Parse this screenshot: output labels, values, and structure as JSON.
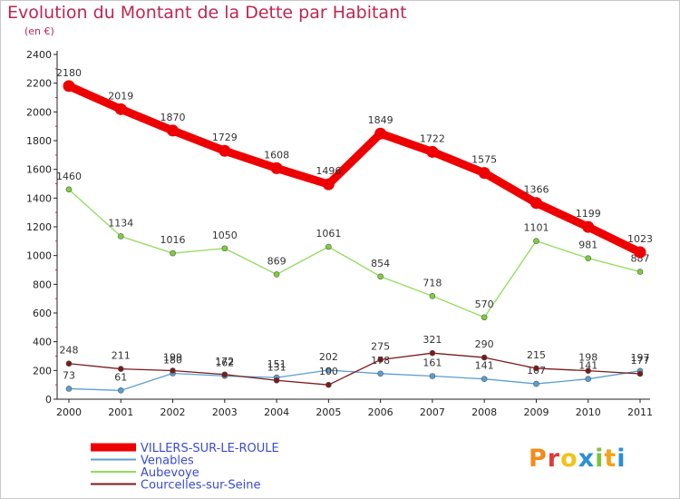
{
  "header": {
    "title": "Evolution du Montant de la Dette par Habitant",
    "subtitle": "(en €)"
  },
  "brand": {
    "letters": [
      "P",
      "r",
      "o",
      "x",
      "i",
      "t",
      "i"
    ],
    "colors": [
      "#f28c1a",
      "#e03a3a",
      "#f2c21a",
      "#2b8fd6",
      "#7cc242",
      "#f2a31a",
      "#2b8fd6"
    ]
  },
  "chart_data": {
    "type": "line",
    "x": [
      "2000",
      "2001",
      "2002",
      "2003",
      "2004",
      "2005",
      "2006",
      "2007",
      "2008",
      "2009",
      "2010",
      "2011"
    ],
    "ylim": [
      0,
      2400
    ],
    "yticks": [
      0,
      200,
      400,
      600,
      800,
      1000,
      1200,
      1400,
      1600,
      1800,
      2000,
      2200,
      2400
    ],
    "grid": false,
    "legend_position": "bottom-left",
    "series": [
      {
        "name": "VILLERS-SUR-LE-ROULE",
        "color": "#ee0000",
        "legend_color": "#3a4bd6",
        "width": 9,
        "values": [
          2180,
          2019,
          1870,
          1729,
          1608,
          1496,
          1849,
          1722,
          1575,
          1366,
          1199,
          1023
        ]
      },
      {
        "name": "Venables",
        "color": "#5a9fd4",
        "legend_color": "#3a4bd6",
        "width": 1.3,
        "values": [
          73,
          61,
          180,
          162,
          151,
          202,
          178,
          161,
          141,
          107,
          141,
          197
        ]
      },
      {
        "name": "Aubevoye",
        "color": "#90dc5a",
        "legend_color": "#3a4bd6",
        "width": 1.3,
        "values": [
          1460,
          1134,
          1016,
          1050,
          869,
          1061,
          854,
          718,
          570,
          1101,
          981,
          887
        ]
      },
      {
        "name": "Courcelles-sur-Seine",
        "color": "#7a1a1a",
        "legend_color": "#3a4bd6",
        "width": 1.3,
        "values": [
          248,
          211,
          199,
          172,
          131,
          100,
          275,
          321,
          290,
          215,
          198,
          177
        ]
      }
    ]
  }
}
